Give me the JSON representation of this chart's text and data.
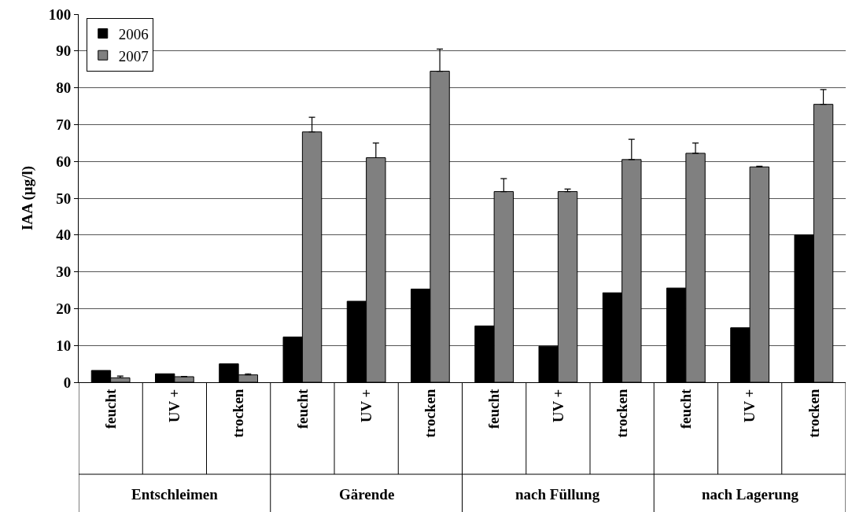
{
  "chart_data": {
    "type": "bar",
    "ylabel": "IAA (µg/l)",
    "categories": [
      "feucht",
      "UV +",
      "trocken",
      "feucht",
      "UV +",
      "trocken",
      "feucht",
      "UV +",
      "trocken",
      "feucht",
      "UV +",
      "trocken"
    ],
    "series": [
      {
        "name": "2006",
        "color": "#000000",
        "values": [
          3.2,
          2.3,
          5.0,
          12.3,
          22,
          25.3,
          15.3,
          9.8,
          24.3,
          25.6,
          14.8,
          40
        ]
      },
      {
        "name": "2007",
        "color": "#808080",
        "values": [
          1.2,
          1.5,
          2.0,
          68,
          61,
          84.5,
          51.8,
          51.8,
          60.5,
          62.2,
          58.5,
          75.5
        ],
        "errors": [
          [
            1.2,
            1.7
          ],
          [
            1.5,
            1.6
          ],
          [
            2.0,
            2.3
          ],
          [
            68,
            72
          ],
          [
            61,
            65
          ],
          [
            84.5,
            90.5
          ],
          [
            51.8,
            55.3
          ],
          [
            51.8,
            52.5
          ],
          [
            60.5,
            66
          ],
          [
            62.2,
            65
          ],
          [
            58.5,
            58.7
          ],
          [
            75.5,
            79.5
          ]
        ]
      }
    ],
    "annotations": [
      "Entschleimen",
      "Gärende",
      "nach Füllung",
      "nach Lagerung"
    ],
    "ylim": [
      0,
      100
    ],
    "yticks": [
      0,
      10,
      20,
      30,
      40,
      50,
      60,
      70,
      80,
      90,
      100
    ],
    "grid": "y",
    "legend": "top left"
  }
}
